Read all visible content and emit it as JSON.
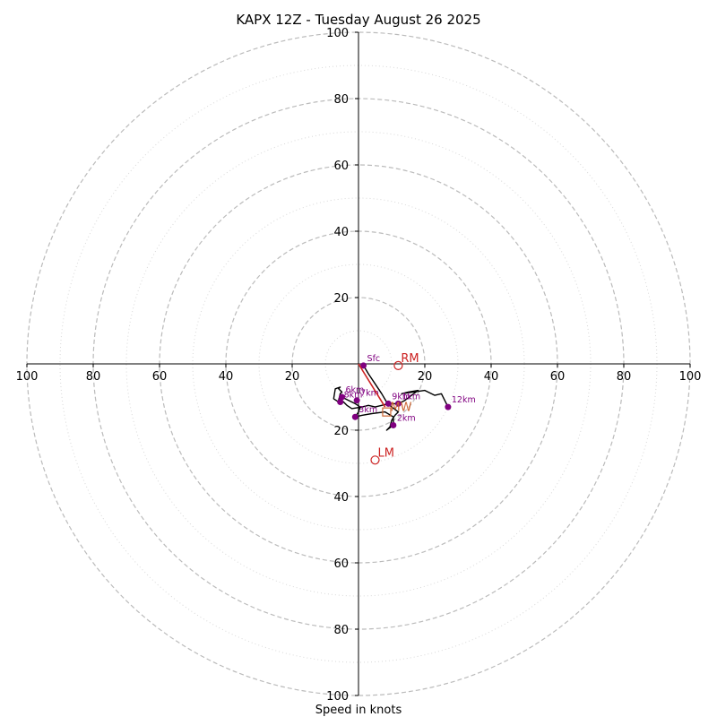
{
  "chart_data": {
    "type": "hodograph",
    "title": "KAPX 12Z - Tuesday August 26 2025",
    "xlabel": "Speed in knots",
    "range": [
      -100,
      100
    ],
    "ring_major": [
      20,
      40,
      60,
      80,
      100
    ],
    "ring_minor": [
      10,
      30,
      50,
      70,
      90
    ],
    "tick_labels": {
      "x": [
        "100",
        "80",
        "60",
        "40",
        "20",
        "20",
        "40",
        "60",
        "80",
        "100"
      ],
      "y_top": [
        "20",
        "40",
        "60",
        "80",
        "100"
      ],
      "y_bottom": [
        "20",
        "40",
        "60",
        "80",
        "100"
      ]
    },
    "grid": true,
    "colors": {
      "trace": "#000000",
      "height_marker": "#800080",
      "motion": "#cc2222",
      "mean_wind": "#cc6633",
      "grid": "#bbbbbb"
    },
    "trace": [
      [
        1.5,
        -0.5
      ],
      [
        3,
        -3
      ],
      [
        5,
        -6
      ],
      [
        7,
        -9
      ],
      [
        8.5,
        -11.5
      ],
      [
        10,
        -13
      ],
      [
        12,
        -14.5
      ],
      [
        11,
        -15.5
      ],
      [
        10,
        -17
      ],
      [
        9.5,
        -19
      ],
      [
        8.5,
        -20
      ],
      [
        10.5,
        -18.5
      ],
      [
        10.5,
        -16
      ],
      [
        8,
        -14.5
      ],
      [
        4,
        -15
      ],
      [
        1,
        -15.5
      ],
      [
        -1,
        -16
      ],
      [
        0,
        -14.5
      ],
      [
        0.5,
        -13
      ],
      [
        -1,
        -12
      ],
      [
        -3,
        -11
      ],
      [
        -4,
        -10.5
      ],
      [
        -5,
        -10
      ],
      [
        -6,
        -11
      ],
      [
        -5.5,
        -9
      ],
      [
        -5,
        -8.5
      ],
      [
        -6,
        -7.5
      ],
      [
        -5.5,
        -7
      ],
      [
        -7,
        -7.5
      ],
      [
        -7.5,
        -10.5
      ],
      [
        -6,
        -11.5
      ],
      [
        -5,
        -11
      ],
      [
        -3.5,
        -12.5
      ],
      [
        -2,
        -13.5
      ],
      [
        1,
        -13
      ],
      [
        3,
        -12.5
      ],
      [
        5,
        -13
      ],
      [
        7,
        -12.5
      ],
      [
        9,
        -12
      ],
      [
        11,
        -12
      ],
      [
        13,
        -11.5
      ],
      [
        14,
        -11
      ],
      [
        16,
        -9.5
      ],
      [
        18,
        -8
      ],
      [
        15,
        -8.5
      ],
      [
        13,
        -9
      ],
      [
        20,
        -8
      ],
      [
        23,
        -9.5
      ],
      [
        25,
        -9
      ],
      [
        27,
        -13
      ]
    ],
    "heights": [
      {
        "label": "Sfc",
        "u": 1.5,
        "v": -0.5
      },
      {
        "label": "1km",
        "u": 12,
        "v": -12
      },
      {
        "label": "2km",
        "u": 10.5,
        "v": -18.5
      },
      {
        "label": "3km",
        "u": -1,
        "v": -16
      },
      {
        "label": "6km",
        "u": -5,
        "v": -10
      },
      {
        "label": "7km",
        "u": -0.5,
        "v": -11
      },
      {
        "label": "8km",
        "u": -5.5,
        "v": -11.5
      },
      {
        "label": "9km",
        "u": 9,
        "v": -12
      },
      {
        "label": "12km",
        "u": 27,
        "v": -13
      }
    ],
    "storm_motion": {
      "RM": {
        "label": "RM",
        "u": 12,
        "v": -0.5
      },
      "LM": {
        "label": "LM",
        "u": 5,
        "v": -29
      },
      "MW": {
        "label": "MW",
        "u": 8.5,
        "v": -14.5
      },
      "shear_line": [
        [
          0,
          0
        ],
        [
          8,
          -13
        ]
      ]
    }
  }
}
